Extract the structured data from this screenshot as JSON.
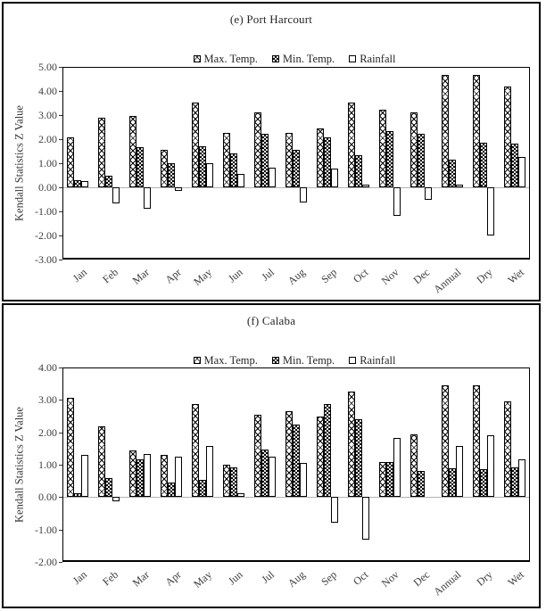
{
  "figure": {
    "background": "#ffffff",
    "panel_border_color": "#000000"
  },
  "colors": {
    "bar_outline": "#000000",
    "zero_line": "#b3b3b3",
    "axis_line": "#000000",
    "title_text": "#262626",
    "tick_text": "#3d3d3d"
  },
  "chart_data": [
    {
      "type": "bar",
      "title": "(e) Port Harcourt",
      "ylabel": "Kendall Statistics Z Value",
      "xlabel": "",
      "ylim": [
        -3,
        5
      ],
      "ytick_step": 1,
      "ytick_format": "two-decimals",
      "legend_position": "top-center",
      "grid": "zero-line-only",
      "categories": [
        "Jan",
        "Feb",
        "Mar",
        "Apr",
        "May",
        "Jun",
        "Jul",
        "Aug",
        "Sep",
        "Oct",
        "Nov",
        "Dec",
        "Annual",
        "Dry",
        "Wet"
      ],
      "series": [
        {
          "name": "Max. Temp.",
          "pattern": "crosshatch",
          "values": [
            2.06,
            2.88,
            2.97,
            1.56,
            3.52,
            2.26,
            3.12,
            2.26,
            2.44,
            3.51,
            3.21,
            3.11,
            4.67,
            4.67,
            4.19
          ]
        },
        {
          "name": "Min. Temp.",
          "pattern": "dark-dotted",
          "values": [
            0.3,
            0.49,
            1.66,
            1.01,
            1.72,
            1.4,
            2.21,
            1.55,
            2.09,
            1.34,
            2.35,
            2.22,
            1.14,
            1.85,
            1.81
          ]
        },
        {
          "name": "Rainfall",
          "pattern": "white",
          "values": [
            0.26,
            -0.65,
            -0.89,
            -0.16,
            1.01,
            0.54,
            0.8,
            -0.62,
            0.77,
            0.1,
            -1.17,
            -0.52,
            0.12,
            -2.0,
            1.26
          ]
        }
      ]
    },
    {
      "type": "bar",
      "title": "(f) Calaba",
      "ylabel": "Kendall Statistics Z Value",
      "xlabel": "",
      "ylim": [
        -2,
        4
      ],
      "ytick_step": 1,
      "ytick_format": "two-decimals",
      "legend_position": "top-center",
      "grid": "zero-line-only",
      "categories": [
        "Jan",
        "Feb",
        "Mar",
        "Apr",
        "May",
        "Jun",
        "Jul",
        "Aug",
        "Sep",
        "Oct",
        "Nov",
        "Dec",
        "Annual",
        "Dry",
        "Wet"
      ],
      "series": [
        {
          "name": "Max. Temp.",
          "pattern": "crosshatch",
          "values": [
            3.06,
            2.18,
            1.44,
            1.29,
            2.86,
            1.0,
            2.55,
            2.66,
            2.48,
            3.27,
            1.07,
            1.93,
            3.45,
            3.45,
            2.95
          ]
        },
        {
          "name": "Min. Temp.",
          "pattern": "dark-dotted",
          "values": [
            0.13,
            0.6,
            1.17,
            0.44,
            0.53,
            0.93,
            1.47,
            2.23,
            2.88,
            2.39,
            1.07,
            0.81,
            0.88,
            0.87,
            0.92
          ]
        },
        {
          "name": "Rainfall",
          "pattern": "white",
          "values": [
            1.3,
            -0.13,
            1.34,
            1.25,
            1.59,
            0.12,
            1.24,
            1.05,
            -0.8,
            -1.31,
            1.82,
            0.0,
            1.57,
            1.9,
            1.17
          ]
        }
      ]
    }
  ]
}
